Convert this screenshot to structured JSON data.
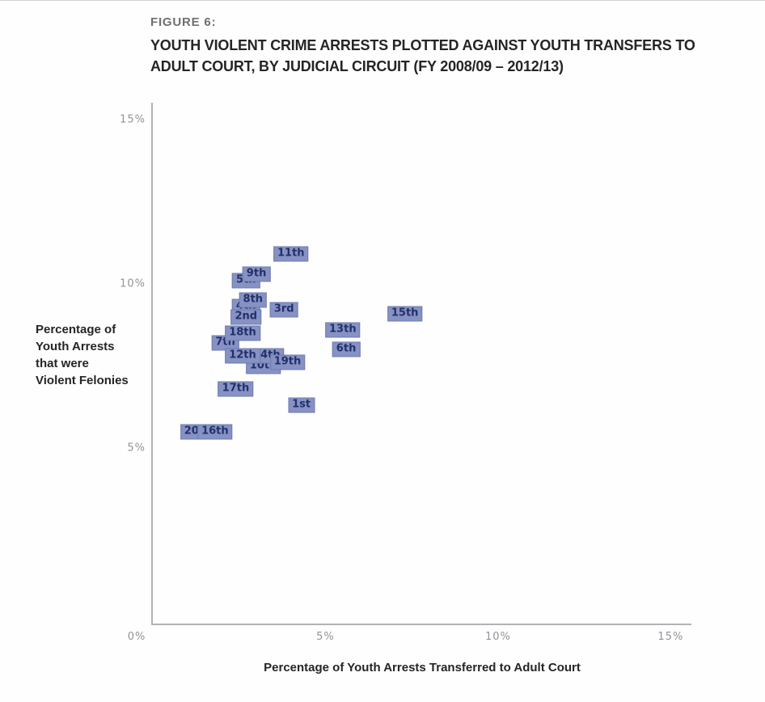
{
  "figure": {
    "label": "FIGURE 6:",
    "title_line1": "YOUTH VIOLENT CRIME ARRESTS PLOTTED AGAINST YOUTH TRANSFERS TO",
    "title_line2": "ADULT COURT, BY JUDICIAL CIRCUIT (FY 2008/09 – 2012/13)"
  },
  "chart_data": {
    "type": "scatter",
    "title": "Youth Violent Crime Arrests Plotted Against Youth Transfers to Adult Court, by Judicial Circuit (FY 2008/09 – 2012/13)",
    "xlabel": "Percentage of Youth Arrests Transferred to Adult Court",
    "ylabel": "Percentage of\nYouth Arrests\nthat were\nViolent Felonies",
    "units": "percent",
    "xlim": [
      0,
      15.6
    ],
    "ylim": [
      0,
      15.5
    ],
    "grid": false,
    "legend": "none",
    "marker_style": {
      "fill": "#8692c3",
      "text": "#23306b",
      "border": "#6f7cb0"
    },
    "x_ticks": [
      {
        "value": 0,
        "label": "0%"
      },
      {
        "value": 5,
        "label": "5%"
      },
      {
        "value": 10,
        "label": "10%"
      },
      {
        "value": 15,
        "label": "15%"
      }
    ],
    "y_ticks": [
      {
        "value": 5,
        "label": "5%"
      },
      {
        "value": 10,
        "label": "10%"
      },
      {
        "value": 15,
        "label": "15%"
      }
    ],
    "points": [
      {
        "label": "1st",
        "x": 4.3,
        "y": 6.3,
        "z": 2
      },
      {
        "label": "2nd",
        "x": 2.7,
        "y": 9.0,
        "z": 4
      },
      {
        "label": "3rd",
        "x": 3.8,
        "y": 9.2,
        "z": 2
      },
      {
        "label": "4th",
        "x": 2.7,
        "y": 9.3,
        "z": 1
      },
      {
        "label": "5th",
        "x": 2.7,
        "y": 10.1,
        "z": 1
      },
      {
        "label": "6th",
        "x": 5.6,
        "y": 8.0,
        "z": 2
      },
      {
        "label": "7th",
        "x": 2.1,
        "y": 8.2,
        "z": 1
      },
      {
        "label": "8th",
        "x": 2.9,
        "y": 9.5,
        "z": 3
      },
      {
        "label": "9th",
        "x": 3.0,
        "y": 10.3,
        "z": 2
      },
      {
        "label": "10th",
        "x": 3.2,
        "y": 7.5,
        "z": 1
      },
      {
        "label": "11th",
        "x": 4.0,
        "y": 10.9,
        "z": 2
      },
      {
        "label": "12th",
        "x": 2.6,
        "y": 7.8,
        "z": 3
      },
      {
        "label": "13th",
        "x": 5.5,
        "y": 8.6,
        "z": 2
      },
      {
        "label": "14th",
        "x": 3.3,
        "y": 7.8,
        "z": 2
      },
      {
        "label": "15th",
        "x": 7.3,
        "y": 9.1,
        "z": 2
      },
      {
        "label": "16th",
        "x": 1.8,
        "y": 5.5,
        "z": 2
      },
      {
        "label": "17th",
        "x": 2.4,
        "y": 6.8,
        "z": 2
      },
      {
        "label": "18th",
        "x": 2.6,
        "y": 8.5,
        "z": 2
      },
      {
        "label": "19th",
        "x": 3.9,
        "y": 7.6,
        "z": 4
      },
      {
        "label": "20th",
        "x": 1.3,
        "y": 5.5,
        "z": 1
      }
    ]
  }
}
